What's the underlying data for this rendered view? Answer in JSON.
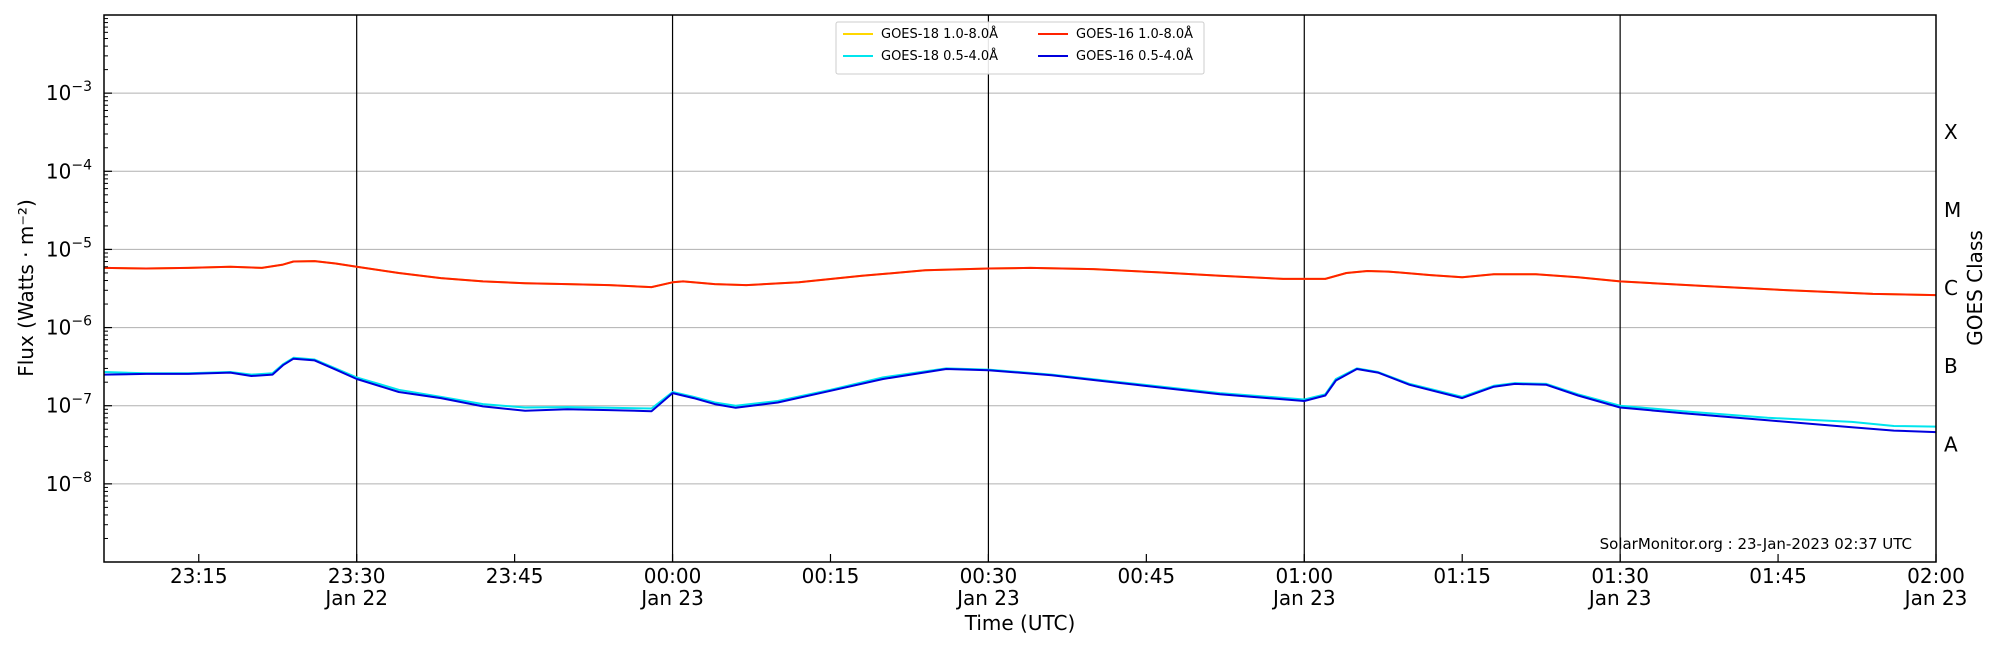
{
  "chart_data": {
    "type": "line",
    "title": "",
    "xlabel": "Time (UTC)",
    "ylabel": "Flux (Watts · m⁻²)",
    "y2label": "GOES Class",
    "yscale": "log",
    "ylim": [
      1e-09,
      0.01
    ],
    "xlim": [
      "2023-01-22 23:06",
      "2023-01-23 02:00"
    ],
    "grid": "horizontal",
    "legend_position": "top-center",
    "credit": "SolarMonitor.org : 23-Jan-2023 02:37 UTC",
    "y_ticks": [
      {
        "value": 1e-08,
        "base": "10",
        "exp": "−8"
      },
      {
        "value": 1e-07,
        "base": "10",
        "exp": "−7"
      },
      {
        "value": 1e-06,
        "base": "10",
        "exp": "−6"
      },
      {
        "value": 1e-05,
        "base": "10",
        "exp": "−5"
      },
      {
        "value": 0.0001,
        "base": "10",
        "exp": "−4"
      },
      {
        "value": 0.001,
        "base": "10",
        "exp": "−3"
      }
    ],
    "x_ticks": [
      {
        "time": "2023-01-22 23:15",
        "label": "23:15",
        "date": ""
      },
      {
        "time": "2023-01-22 23:30",
        "label": "23:30",
        "date": "Jan 22"
      },
      {
        "time": "2023-01-22 23:45",
        "label": "23:45",
        "date": ""
      },
      {
        "time": "2023-01-23 00:00",
        "label": "00:00",
        "date": "Jan 23"
      },
      {
        "time": "2023-01-23 00:15",
        "label": "00:15",
        "date": ""
      },
      {
        "time": "2023-01-23 00:30",
        "label": "00:30",
        "date": "Jan 23"
      },
      {
        "time": "2023-01-23 00:45",
        "label": "00:45",
        "date": ""
      },
      {
        "time": "2023-01-23 01:00",
        "label": "01:00",
        "date": "Jan 23"
      },
      {
        "time": "2023-01-23 01:15",
        "label": "01:15",
        "date": ""
      },
      {
        "time": "2023-01-23 01:30",
        "label": "01:30",
        "date": "Jan 23"
      },
      {
        "time": "2023-01-23 01:45",
        "label": "01:45",
        "date": ""
      },
      {
        "time": "2023-01-23 02:00",
        "label": "02:00",
        "date": "Jan 23"
      }
    ],
    "vertical_lines": [
      "2023-01-22 23:30",
      "2023-01-23 00:00",
      "2023-01-23 00:30",
      "2023-01-23 01:00",
      "2023-01-23 01:30"
    ],
    "goes_classes": [
      {
        "label": "A",
        "value": 3.2e-08
      },
      {
        "label": "B",
        "value": 3.2e-07
      },
      {
        "label": "C",
        "value": 3.2e-06
      },
      {
        "label": "M",
        "value": 3.2e-05
      },
      {
        "label": "X",
        "value": 0.00032
      }
    ],
    "series": [
      {
        "name": "GOES-18 1.0-8.0Å",
        "color": "#ffd700",
        "legend_col": 0,
        "legend_row": 0,
        "data_ref": "xrs_long"
      },
      {
        "name": "GOES-18 0.5-4.0Å",
        "color": "#00e5ee",
        "legend_col": 0,
        "legend_row": 1,
        "data_ref": "xrs_short_18"
      },
      {
        "name": "GOES-16 1.0-8.0Å",
        "color": "#ff2200",
        "legend_col": 1,
        "legend_row": 0,
        "data_ref": "xrs_long"
      },
      {
        "name": "GOES-16 0.5-4.0Å",
        "color": "#0000dd",
        "legend_col": 1,
        "legend_row": 1,
        "data_ref": "xrs_short_16"
      }
    ],
    "data": {
      "xrs_long": [
        [
          "2023-01-22 23:06",
          5.8e-06
        ],
        [
          "2023-01-22 23:10",
          5.7e-06
        ],
        [
          "2023-01-22 23:14",
          5.8e-06
        ],
        [
          "2023-01-22 23:18",
          6e-06
        ],
        [
          "2023-01-22 23:21",
          5.8e-06
        ],
        [
          "2023-01-22 23:23",
          6.4e-06
        ],
        [
          "2023-01-22 23:24",
          7e-06
        ],
        [
          "2023-01-22 23:26",
          7.1e-06
        ],
        [
          "2023-01-22 23:28",
          6.6e-06
        ],
        [
          "2023-01-22 23:30",
          6e-06
        ],
        [
          "2023-01-22 23:34",
          5e-06
        ],
        [
          "2023-01-22 23:38",
          4.3e-06
        ],
        [
          "2023-01-22 23:42",
          3.9e-06
        ],
        [
          "2023-01-22 23:46",
          3.7e-06
        ],
        [
          "2023-01-22 23:50",
          3.6e-06
        ],
        [
          "2023-01-22 23:54",
          3.5e-06
        ],
        [
          "2023-01-22 23:58",
          3.3e-06
        ],
        [
          "2023-01-23 00:00",
          3.8e-06
        ],
        [
          "2023-01-23 00:01",
          3.9e-06
        ],
        [
          "2023-01-23 00:04",
          3.6e-06
        ],
        [
          "2023-01-23 00:07",
          3.5e-06
        ],
        [
          "2023-01-23 00:12",
          3.8e-06
        ],
        [
          "2023-01-23 00:18",
          4.6e-06
        ],
        [
          "2023-01-23 00:24",
          5.4e-06
        ],
        [
          "2023-01-23 00:30",
          5.7e-06
        ],
        [
          "2023-01-23 00:34",
          5.8e-06
        ],
        [
          "2023-01-23 00:40",
          5.6e-06
        ],
        [
          "2023-01-23 00:46",
          5.1e-06
        ],
        [
          "2023-01-23 00:52",
          4.6e-06
        ],
        [
          "2023-01-23 00:58",
          4.2e-06
        ],
        [
          "2023-01-23 01:02",
          4.2e-06
        ],
        [
          "2023-01-23 01:04",
          5e-06
        ],
        [
          "2023-01-23 01:06",
          5.3e-06
        ],
        [
          "2023-01-23 01:08",
          5.2e-06
        ],
        [
          "2023-01-23 01:12",
          4.7e-06
        ],
        [
          "2023-01-23 01:15",
          4.4e-06
        ],
        [
          "2023-01-23 01:18",
          4.8e-06
        ],
        [
          "2023-01-23 01:22",
          4.8e-06
        ],
        [
          "2023-01-23 01:26",
          4.4e-06
        ],
        [
          "2023-01-23 01:30",
          3.9e-06
        ],
        [
          "2023-01-23 01:38",
          3.4e-06
        ],
        [
          "2023-01-23 01:46",
          3e-06
        ],
        [
          "2023-01-23 01:54",
          2.7e-06
        ],
        [
          "2023-01-23 02:00",
          2.6e-06
        ]
      ],
      "xrs_short_18": [
        [
          "2023-01-22 23:06",
          2.7e-07
        ],
        [
          "2023-01-22 23:10",
          2.6e-07
        ],
        [
          "2023-01-22 23:14",
          2.6e-07
        ],
        [
          "2023-01-22 23:18",
          2.7e-07
        ],
        [
          "2023-01-22 23:20",
          2.5e-07
        ],
        [
          "2023-01-22 23:22",
          2.6e-07
        ],
        [
          "2023-01-22 23:23",
          3.4e-07
        ],
        [
          "2023-01-22 23:24",
          4.1e-07
        ],
        [
          "2023-01-22 23:26",
          3.9e-07
        ],
        [
          "2023-01-22 23:28",
          3e-07
        ],
        [
          "2023-01-22 23:30",
          2.3e-07
        ],
        [
          "2023-01-22 23:34",
          1.6e-07
        ],
        [
          "2023-01-22 23:38",
          1.3e-07
        ],
        [
          "2023-01-22 23:42",
          1.05e-07
        ],
        [
          "2023-01-22 23:46",
          9.5e-08
        ],
        [
          "2023-01-22 23:50",
          9.6e-08
        ],
        [
          "2023-01-22 23:54",
          9.4e-08
        ],
        [
          "2023-01-22 23:58",
          9.2e-08
        ],
        [
          "2023-01-23 00:00",
          1.5e-07
        ],
        [
          "2023-01-23 00:02",
          1.3e-07
        ],
        [
          "2023-01-23 00:04",
          1.1e-07
        ],
        [
          "2023-01-23 00:06",
          1e-07
        ],
        [
          "2023-01-23 00:10",
          1.15e-07
        ],
        [
          "2023-01-23 00:15",
          1.6e-07
        ],
        [
          "2023-01-23 00:20",
          2.3e-07
        ],
        [
          "2023-01-23 00:26",
          3e-07
        ],
        [
          "2023-01-23 00:30",
          2.9e-07
        ],
        [
          "2023-01-23 00:36",
          2.5e-07
        ],
        [
          "2023-01-23 00:44",
          1.9e-07
        ],
        [
          "2023-01-23 00:52",
          1.45e-07
        ],
        [
          "2023-01-23 01:00",
          1.2e-07
        ],
        [
          "2023-01-23 01:02",
          1.4e-07
        ],
        [
          "2023-01-23 01:03",
          2.2e-07
        ],
        [
          "2023-01-23 01:05",
          3e-07
        ],
        [
          "2023-01-23 01:07",
          2.7e-07
        ],
        [
          "2023-01-23 01:10",
          1.9e-07
        ],
        [
          "2023-01-23 01:15",
          1.3e-07
        ],
        [
          "2023-01-23 01:18",
          1.8e-07
        ],
        [
          "2023-01-23 01:20",
          1.95e-07
        ],
        [
          "2023-01-23 01:23",
          1.9e-07
        ],
        [
          "2023-01-23 01:26",
          1.4e-07
        ],
        [
          "2023-01-23 01:30",
          1e-07
        ],
        [
          "2023-01-23 01:36",
          8.5e-08
        ],
        [
          "2023-01-23 01:44",
          7e-08
        ],
        [
          "2023-01-23 01:52",
          6.2e-08
        ],
        [
          "2023-01-23 01:56",
          5.5e-08
        ],
        [
          "2023-01-23 02:00",
          5.4e-08
        ]
      ],
      "xrs_short_16": [
        [
          "2023-01-22 23:06",
          2.5e-07
        ],
        [
          "2023-01-22 23:10",
          2.55e-07
        ],
        [
          "2023-01-22 23:14",
          2.55e-07
        ],
        [
          "2023-01-22 23:18",
          2.65e-07
        ],
        [
          "2023-01-22 23:20",
          2.4e-07
        ],
        [
          "2023-01-22 23:22",
          2.5e-07
        ],
        [
          "2023-01-22 23:23",
          3.3e-07
        ],
        [
          "2023-01-22 23:24",
          4e-07
        ],
        [
          "2023-01-22 23:26",
          3.8e-07
        ],
        [
          "2023-01-22 23:28",
          2.9e-07
        ],
        [
          "2023-01-22 23:30",
          2.2e-07
        ],
        [
          "2023-01-22 23:34",
          1.5e-07
        ],
        [
          "2023-01-22 23:38",
          1.25e-07
        ],
        [
          "2023-01-22 23:42",
          9.8e-08
        ],
        [
          "2023-01-22 23:46",
          8.6e-08
        ],
        [
          "2023-01-22 23:50",
          9e-08
        ],
        [
          "2023-01-22 23:54",
          8.8e-08
        ],
        [
          "2023-01-22 23:58",
          8.5e-08
        ],
        [
          "2023-01-23 00:00",
          1.45e-07
        ],
        [
          "2023-01-23 00:02",
          1.25e-07
        ],
        [
          "2023-01-23 00:04",
          1.05e-07
        ],
        [
          "2023-01-23 00:06",
          9.4e-08
        ],
        [
          "2023-01-23 00:10",
          1.1e-07
        ],
        [
          "2023-01-23 00:15",
          1.55e-07
        ],
        [
          "2023-01-23 00:20",
          2.2e-07
        ],
        [
          "2023-01-23 00:26",
          2.95e-07
        ],
        [
          "2023-01-23 00:30",
          2.85e-07
        ],
        [
          "2023-01-23 00:36",
          2.45e-07
        ],
        [
          "2023-01-23 00:44",
          1.85e-07
        ],
        [
          "2023-01-23 00:52",
          1.4e-07
        ],
        [
          "2023-01-23 01:00",
          1.15e-07
        ],
        [
          "2023-01-23 01:02",
          1.35e-07
        ],
        [
          "2023-01-23 01:03",
          2.1e-07
        ],
        [
          "2023-01-23 01:05",
          2.95e-07
        ],
        [
          "2023-01-23 01:07",
          2.65e-07
        ],
        [
          "2023-01-23 01:10",
          1.85e-07
        ],
        [
          "2023-01-23 01:15",
          1.25e-07
        ],
        [
          "2023-01-23 01:18",
          1.75e-07
        ],
        [
          "2023-01-23 01:20",
          1.9e-07
        ],
        [
          "2023-01-23 01:23",
          1.85e-07
        ],
        [
          "2023-01-23 01:26",
          1.35e-07
        ],
        [
          "2023-01-23 01:30",
          9.5e-08
        ],
        [
          "2023-01-23 01:36",
          8e-08
        ],
        [
          "2023-01-23 01:44",
          6.5e-08
        ],
        [
          "2023-01-23 01:52",
          5.3e-08
        ],
        [
          "2023-01-23 01:56",
          4.8e-08
        ],
        [
          "2023-01-23 02:00",
          4.6e-08
        ]
      ]
    }
  }
}
